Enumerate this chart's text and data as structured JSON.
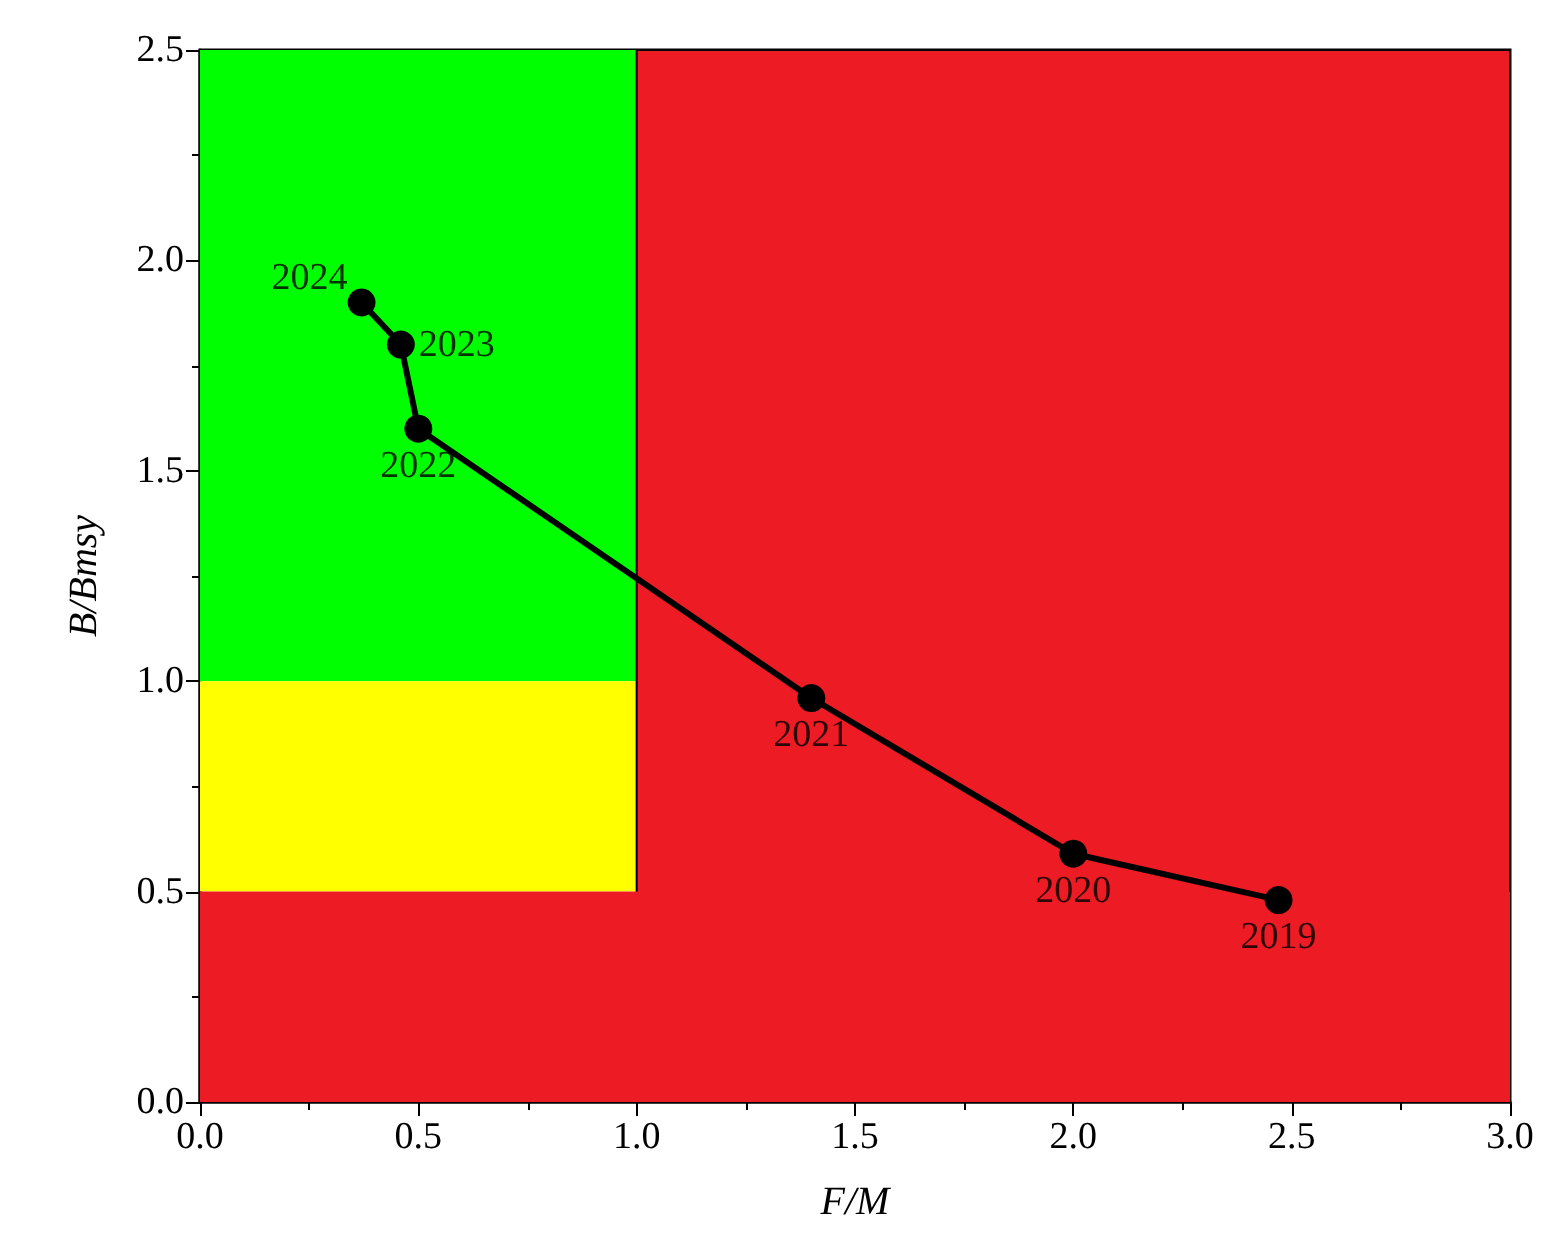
{
  "chart_data": {
    "type": "line",
    "xlabel": "F/M",
    "ylabel": "B/Bmsy",
    "x": [
      2.47,
      2.0,
      1.4,
      0.5,
      0.46,
      0.37
    ],
    "series": [
      {
        "color": "#000000",
        "values": [
          0.48,
          0.59,
          0.96,
          1.6,
          1.8,
          1.9
        ]
      }
    ],
    "marker": "circle",
    "line_style": "solid",
    "xlim": [
      0,
      3
    ],
    "xticks": [
      {
        "value": 0,
        "label": "0.0"
      },
      0.5,
      {
        "value": 1,
        "label": "1.0"
      },
      1.5,
      {
        "value": 2,
        "label": "2.0"
      },
      2.5,
      {
        "value": 3,
        "label": "3.0"
      }
    ],
    "ylim": [
      0,
      2.5
    ],
    "yticks": [
      {
        "value": 0,
        "label": "0.0"
      },
      0.5,
      {
        "value": 1,
        "label": "1.0"
      },
      1.5,
      {
        "value": 2,
        "label": "2.0"
      },
      2.5
    ],
    "bands": [
      {
        "axis": "y",
        "from": 1,
        "to": 2.5,
        "color": "#00ff00"
      },
      {
        "axis": "y",
        "from": 0.5,
        "to": 1,
        "color": "#ffff00"
      },
      {
        "axis": "x",
        "from": 1,
        "to": 3,
        "color": "#ed1c24"
      },
      {
        "axis": "y",
        "from": 0,
        "to": 0.5,
        "color": "#ed1c24"
      }
    ],
    "annotations": [
      {
        "text": "2019",
        "x": 2.47,
        "y": 0.48
      },
      {
        "text": "2020",
        "x": 2.0,
        "y": 0.59
      },
      {
        "text": "2021",
        "x": 1.4,
        "y": 0.96
      },
      {
        "text": "2022",
        "x": 0.5,
        "y": 1.6
      },
      {
        "text": "2023",
        "x": 0.46,
        "y": 1.8
      },
      {
        "text": "2024",
        "x": 0.37,
        "y": 1.9
      }
    ]
  }
}
